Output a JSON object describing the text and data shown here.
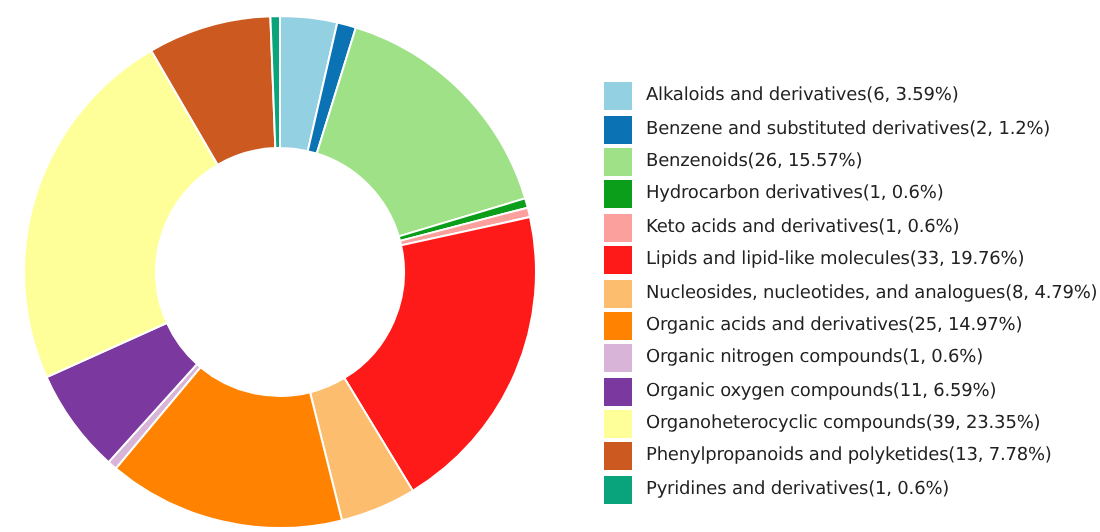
{
  "chart_data": {
    "type": "donut",
    "legend": "right",
    "categories": [
      "Alkaloids and derivatives(6, 3.59%)",
      "Benzene and substituted derivatives(2, 1.2%)",
      "Benzenoids(26, 15.57%)",
      "Hydrocarbon derivatives(1, 0.6%)",
      "Keto acids and derivatives(1, 0.6%)",
      "Lipids and lipid-like molecules(33, 19.76%)",
      "Nucleosides, nucleotides, and analogues(8, 4.79%)",
      "Organic acids and derivatives(25, 14.97%)",
      "Organic nitrogen compounds(1, 0.6%)",
      "Organic oxygen compounds(11, 6.59%)",
      "Organoheterocyclic compounds(39, 23.35%)",
      "Phenylpropanoids and polyketides(13, 7.78%)",
      "Pyridines and derivatives(1, 0.6%)"
    ],
    "values": [
      6,
      2,
      26,
      1,
      1,
      33,
      8,
      25,
      1,
      11,
      39,
      13,
      1
    ],
    "colors": [
      "#92d0e2",
      "#0b72b4",
      "#9ee186",
      "#0a9e1a",
      "#fba09c",
      "#ff1a1a",
      "#fdbd6e",
      "#ff8200",
      "#d8b4d9",
      "#7b39a0",
      "#ffff99",
      "#cb5920",
      "#0aa47c"
    ]
  }
}
